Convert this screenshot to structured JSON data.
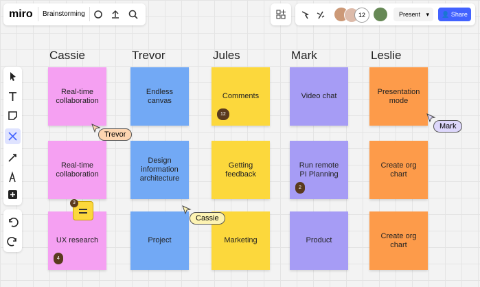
{
  "header": {
    "logo": "miro",
    "board_name": "Brainstorming",
    "collaborator_count": "12",
    "present": "Present",
    "share": "Share"
  },
  "columns": [
    {
      "name": "Cassie",
      "notes": [
        {
          "text": "Real-time collaboration"
        },
        {
          "text": "Real-time collaboration"
        },
        {
          "text": "UX research",
          "badge": "4"
        }
      ]
    },
    {
      "name": "Trevor",
      "notes": [
        {
          "text": "Endless canvas"
        },
        {
          "text": "Design information architecture"
        },
        {
          "text": "Project"
        }
      ]
    },
    {
      "name": "Jules",
      "notes": [
        {
          "text": "Comments",
          "badge": "12"
        },
        {
          "text": "Getting feedback"
        },
        {
          "text": "Marketing"
        }
      ]
    },
    {
      "name": "Mark",
      "notes": [
        {
          "text": "Video chat"
        },
        {
          "text": "Run remote PI Planning",
          "badge": "2"
        },
        {
          "text": "Product"
        }
      ]
    },
    {
      "name": "Leslie",
      "notes": [
        {
          "text": "Presentation mode"
        },
        {
          "text": "Create org chart"
        },
        {
          "text": "Create org chart"
        }
      ]
    }
  ],
  "cursors": [
    {
      "name": "Trevor"
    },
    {
      "name": "Cassie"
    },
    {
      "name": "Mark"
    }
  ],
  "comment": {
    "count": "3"
  }
}
